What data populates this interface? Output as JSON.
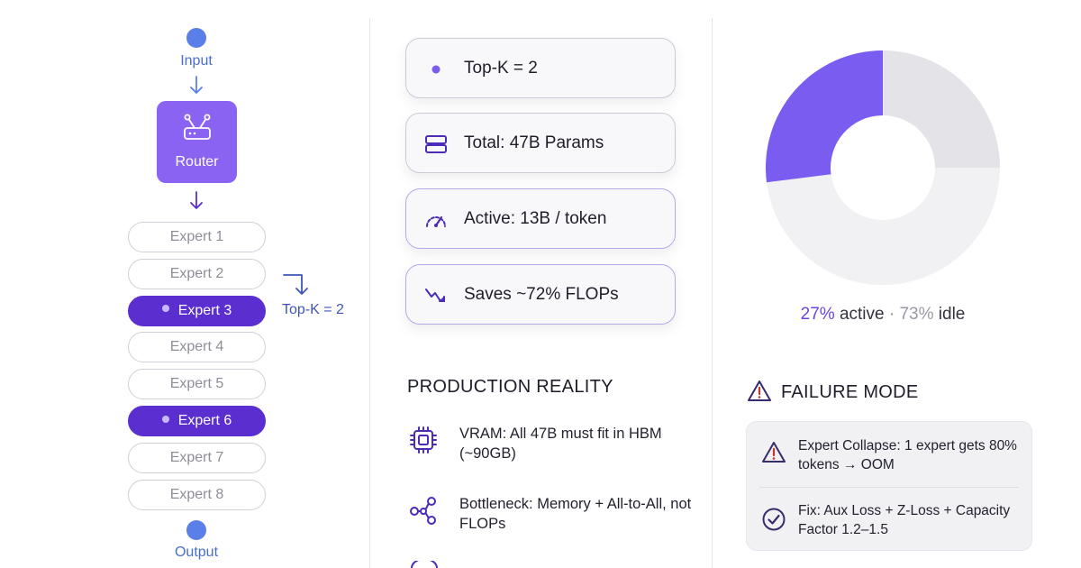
{
  "flow": {
    "input_label": "Input",
    "router_label": "Router",
    "output_label": "Output",
    "experts": [
      {
        "label": "Expert 1",
        "active": false
      },
      {
        "label": "Expert 2",
        "active": false
      },
      {
        "label": "Expert 3",
        "active": true
      },
      {
        "label": "Expert 4",
        "active": false
      },
      {
        "label": "Expert 5",
        "active": false
      },
      {
        "label": "Expert 6",
        "active": true
      },
      {
        "label": "Expert 7",
        "active": false
      },
      {
        "label": "Expert 8",
        "active": false
      }
    ],
    "topk_side_label": "Top-K = 2"
  },
  "stats": {
    "cards": [
      {
        "label": "Top-K = 2",
        "icon": "dot-icon"
      },
      {
        "label": "Total: 47B Params",
        "icon": "server-stack-icon"
      },
      {
        "label": "Active: 13B / token",
        "icon": "gauge-icon"
      },
      {
        "label": "Saves ~72% FLOPs",
        "icon": "trend-down-icon"
      }
    ]
  },
  "production": {
    "title": "PRODUCTION REALITY",
    "items": [
      {
        "text": "VRAM: All 47B must fit in HBM (~90GB)",
        "icon": "chip-icon"
      },
      {
        "text": "Bottleneck: Memory + All-to-All, not FLOPs",
        "icon": "network-icon"
      }
    ]
  },
  "chart_data": {
    "type": "pie",
    "categories": [
      "active",
      "idle"
    ],
    "values": [
      27,
      73
    ],
    "colors": {
      "active": "#7b5cf0",
      "idle": "#f1f1f4",
      "idle_accent": "#e3e3e8"
    },
    "caption": {
      "active": "27%",
      "active_word": "active",
      "sep": "·",
      "idle": "73%",
      "idle_word": "idle"
    }
  },
  "failure": {
    "title": "FAILURE MODE",
    "items": [
      {
        "text": "Expert Collapse: 1 expert gets 80% tokens → OOM",
        "icon": "warning-icon"
      },
      {
        "text": "Fix: Aux Loss + Z-Loss + Capacity Factor 1.2–1.5",
        "icon": "check-circle-icon"
      }
    ]
  },
  "colors": {
    "accent": "#5b2ed0",
    "flow_blue": "#5b7fe8",
    "router": "#8b63f2"
  }
}
